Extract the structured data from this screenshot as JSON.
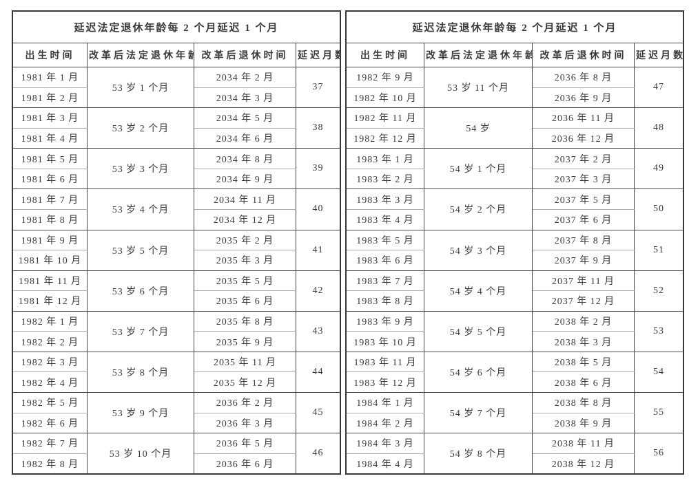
{
  "colors": {
    "background": "#ffffff",
    "ink": "#3a3a3a",
    "grid_dark": "#454545",
    "grid_light": "#adadad",
    "outer_border": "#383838"
  },
  "tables": [
    {
      "title": "延迟法定退休年龄每 2 个月延迟 1 个月",
      "columns": [
        "出生时间",
        "改革后法定退休年龄",
        "改革后退休时间",
        "延迟月数"
      ],
      "groups": [
        {
          "age": "53 岁 1 个月",
          "delay": "37",
          "rows": [
            {
              "birth": "1981 年 1 月",
              "retire": "2034 年 2 月"
            },
            {
              "birth": "1981 年 2 月",
              "retire": "2034 年 3 月"
            }
          ]
        },
        {
          "age": "53 岁 2 个月",
          "delay": "38",
          "rows": [
            {
              "birth": "1981 年 3 月",
              "retire": "2034 年 5 月"
            },
            {
              "birth": "1981 年 4 月",
              "retire": "2034 年 6 月"
            }
          ]
        },
        {
          "age": "53 岁 3 个月",
          "delay": "39",
          "rows": [
            {
              "birth": "1981 年 5 月",
              "retire": "2034 年 8 月"
            },
            {
              "birth": "1981 年 6 月",
              "retire": "2034 年 9 月"
            }
          ]
        },
        {
          "age": "53 岁 4 个月",
          "delay": "40",
          "rows": [
            {
              "birth": "1981 年 7 月",
              "retire": "2034 年 11 月"
            },
            {
              "birth": "1981 年 8 月",
              "retire": "2034 年 12 月"
            }
          ]
        },
        {
          "age": "53 岁 5 个月",
          "delay": "41",
          "rows": [
            {
              "birth": "1981 年 9 月",
              "retire": "2035 年 2 月"
            },
            {
              "birth": "1981 年 10 月",
              "retire": "2035 年 3 月"
            }
          ]
        },
        {
          "age": "53 岁 6 个月",
          "delay": "42",
          "rows": [
            {
              "birth": "1981 年 11 月",
              "retire": "2035 年 5 月"
            },
            {
              "birth": "1981 年 12 月",
              "retire": "2035 年 6 月"
            }
          ]
        },
        {
          "age": "53 岁 7 个月",
          "delay": "43",
          "rows": [
            {
              "birth": "1982 年 1 月",
              "retire": "2035 年 8 月"
            },
            {
              "birth": "1982 年 2 月",
              "retire": "2035 年 9 月"
            }
          ]
        },
        {
          "age": "53 岁 8 个月",
          "delay": "44",
          "rows": [
            {
              "birth": "1982 年 3 月",
              "retire": "2035 年 11 月"
            },
            {
              "birth": "1982 年 4 月",
              "retire": "2035 年 12 月"
            }
          ]
        },
        {
          "age": "53 岁 9 个月",
          "delay": "45",
          "rows": [
            {
              "birth": "1982 年 5 月",
              "retire": "2036 年 2 月"
            },
            {
              "birth": "1982 年 6 月",
              "retire": "2036 年 3 月"
            }
          ]
        },
        {
          "age": "53 岁 10 个月",
          "delay": "46",
          "rows": [
            {
              "birth": "1982 年 7 月",
              "retire": "2036 年 5 月"
            },
            {
              "birth": "1982 年 8 月",
              "retire": "2036 年 6 月"
            }
          ]
        }
      ]
    },
    {
      "title": "延迟法定退休年龄每 2 个月延迟 1 个月",
      "columns": [
        "出生时间",
        "改革后法定退休年龄",
        "改革后退休时间",
        "延迟月数"
      ],
      "groups": [
        {
          "age": "53 岁 11 个月",
          "delay": "47",
          "rows": [
            {
              "birth": "1982 年 9 月",
              "retire": "2036 年 8 月"
            },
            {
              "birth": "1982 年 10 月",
              "retire": "2036 年 9 月"
            }
          ]
        },
        {
          "age": "54 岁",
          "delay": "48",
          "rows": [
            {
              "birth": "1982 年 11 月",
              "retire": "2036 年 11 月"
            },
            {
              "birth": "1982 年 12 月",
              "retire": "2036 年 12 月"
            }
          ]
        },
        {
          "age": "54 岁 1 个月",
          "delay": "49",
          "rows": [
            {
              "birth": "1983 年 1 月",
              "retire": "2037 年 2 月"
            },
            {
              "birth": "1983 年 2 月",
              "retire": "2037 年 3 月"
            }
          ]
        },
        {
          "age": "54 岁 2 个月",
          "delay": "50",
          "rows": [
            {
              "birth": "1983 年 3 月",
              "retire": "2037 年 5 月"
            },
            {
              "birth": "1983 年 4 月",
              "retire": "2037 年 6 月"
            }
          ]
        },
        {
          "age": "54 岁 3 个月",
          "delay": "51",
          "rows": [
            {
              "birth": "1983 年 5 月",
              "retire": "2037 年 8 月"
            },
            {
              "birth": "1983 年 6 月",
              "retire": "2037 年 9 月"
            }
          ]
        },
        {
          "age": "54 岁 4 个月",
          "delay": "52",
          "rows": [
            {
              "birth": "1983 年 7 月",
              "retire": "2037 年 11 月"
            },
            {
              "birth": "1983 年 8 月",
              "retire": "2037 年 12 月"
            }
          ]
        },
        {
          "age": "54 岁 5 个月",
          "delay": "53",
          "rows": [
            {
              "birth": "1983 年 9 月",
              "retire": "2038 年 2 月"
            },
            {
              "birth": "1983 年 10 月",
              "retire": "2038 年 3 月"
            }
          ]
        },
        {
          "age": "54 岁 6 个月",
          "delay": "54",
          "rows": [
            {
              "birth": "1983 年 11 月",
              "retire": "2038 年 5 月"
            },
            {
              "birth": "1983 年 12 月",
              "retire": "2038 年 6 月"
            }
          ]
        },
        {
          "age": "54 岁 7 个月",
          "delay": "55",
          "rows": [
            {
              "birth": "1984 年 1 月",
              "retire": "2038 年 8 月"
            },
            {
              "birth": "1984 年 2 月",
              "retire": "2038 年 9 月"
            }
          ]
        },
        {
          "age": "54 岁 8 个月",
          "delay": "56",
          "rows": [
            {
              "birth": "1984 年 3 月",
              "retire": "2038 年 11 月"
            },
            {
              "birth": "1984 年 4 月",
              "retire": "2038 年 12 月"
            }
          ]
        }
      ]
    }
  ]
}
